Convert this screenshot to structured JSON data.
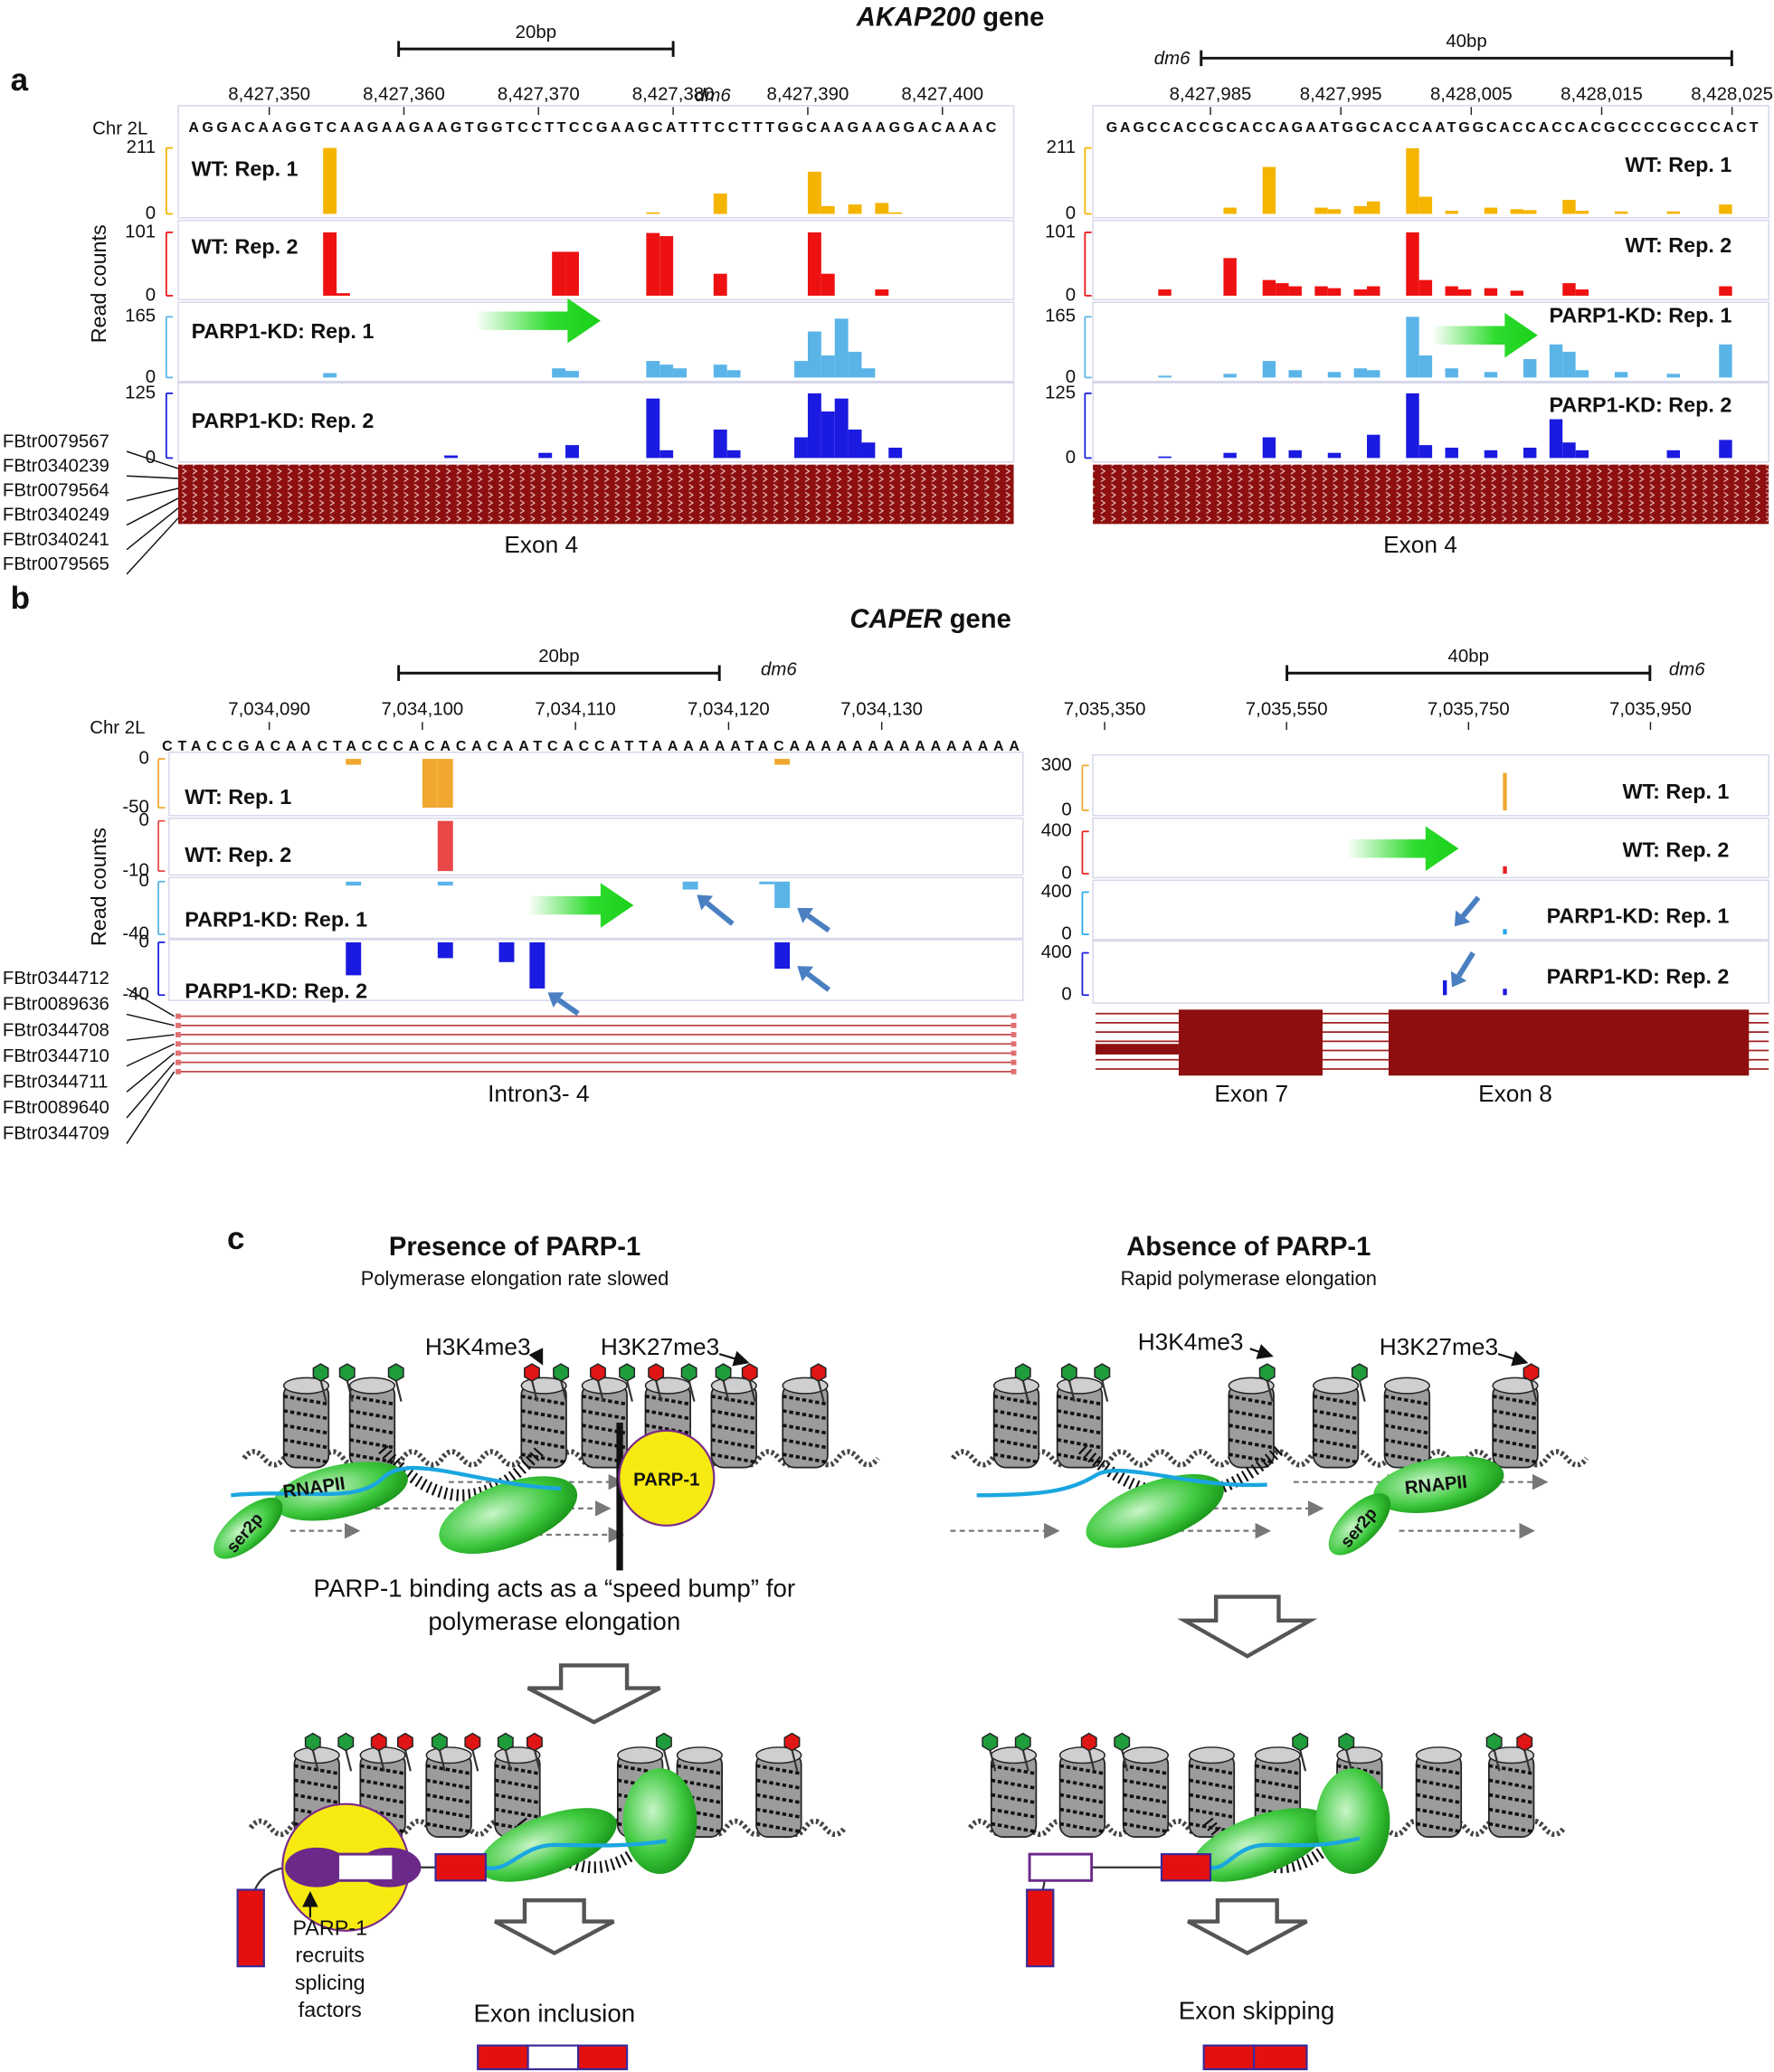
{
  "panel_a": {
    "label": "a",
    "gene": "AKAP200",
    "gene_suffix": "gene",
    "y_axis_label": "Read counts",
    "left": {
      "chrom": "Chr 2L",
      "scale_bar": "20bp",
      "assembly": "dm6",
      "xlim": [
        8427344,
        8427404
      ],
      "xticks": [
        {
          "value": 8427350,
          "label": "8,427,350"
        },
        {
          "value": 8427360,
          "label": "8,427,360"
        },
        {
          "value": 8427370,
          "label": "8,427,370"
        },
        {
          "value": 8427380,
          "label": "8,427,380"
        },
        {
          "value": 8427390,
          "label": "8,427,390"
        },
        {
          "value": 8427400,
          "label": "8,427,400"
        }
      ],
      "sequence": "AGGACAAGGTCAAGAAGAAGTGGTCCTTCCGAAGCATTTCCTTTGGCAAGAAGGACAAAC",
      "tracks": [
        {
          "name": "WT: Rep. 1",
          "color": "#f5b400",
          "ylim": [
            0,
            211
          ],
          "yticks": [
            0,
            211
          ],
          "bars": [
            {
              "x": 8427354,
              "value": 211
            },
            {
              "x": 8427378,
              "value": 5
            },
            {
              "x": 8427383,
              "value": 65
            },
            {
              "x": 8427390,
              "value": 135
            },
            {
              "x": 8427391,
              "value": 25
            },
            {
              "x": 8427393,
              "value": 30
            },
            {
              "x": 8427395,
              "value": 35
            },
            {
              "x": 8427396,
              "value": 5
            }
          ]
        },
        {
          "name": "WT: Rep. 2",
          "color": "#ee1111",
          "ylim": [
            0,
            101
          ],
          "yticks": [
            0,
            101
          ],
          "bars": [
            {
              "x": 8427354,
              "value": 101
            },
            {
              "x": 8427355,
              "value": 4
            },
            {
              "x": 8427371,
              "value": 70
            },
            {
              "x": 8427372,
              "value": 70
            },
            {
              "x": 8427378,
              "value": 100
            },
            {
              "x": 8427379,
              "value": 95
            },
            {
              "x": 8427383,
              "value": 35
            },
            {
              "x": 8427390,
              "value": 101
            },
            {
              "x": 8427391,
              "value": 35
            },
            {
              "x": 8427395,
              "value": 10
            }
          ]
        },
        {
          "name": "PARP1-KD: Rep. 1",
          "color": "#5ab4e8",
          "ylim": [
            0,
            165
          ],
          "yticks": [
            0,
            165
          ],
          "bars": [
            {
              "x": 8427354,
              "value": 12
            },
            {
              "x": 8427371,
              "value": 25
            },
            {
              "x": 8427372,
              "value": 18
            },
            {
              "x": 8427378,
              "value": 45
            },
            {
              "x": 8427379,
              "value": 35
            },
            {
              "x": 8427380,
              "value": 25
            },
            {
              "x": 8427383,
              "value": 35
            },
            {
              "x": 8427384,
              "value": 20
            },
            {
              "x": 8427389,
              "value": 45
            },
            {
              "x": 8427390,
              "value": 125
            },
            {
              "x": 8427391,
              "value": 60
            },
            {
              "x": 8427392,
              "value": 160
            },
            {
              "x": 8427393,
              "value": 70
            },
            {
              "x": 8427394,
              "value": 25
            }
          ]
        },
        {
          "name": "PARP1-KD: Rep. 2",
          "color": "#1a1ae0",
          "ylim": [
            0,
            125
          ],
          "yticks": [
            0,
            125
          ],
          "bars": [
            {
              "x": 8427363,
              "value": 5
            },
            {
              "x": 8427370,
              "value": 10
            },
            {
              "x": 8427372,
              "value": 25
            },
            {
              "x": 8427378,
              "value": 115
            },
            {
              "x": 8427379,
              "value": 15
            },
            {
              "x": 8427383,
              "value": 55
            },
            {
              "x": 8427384,
              "value": 15
            },
            {
              "x": 8427389,
              "value": 40
            },
            {
              "x": 8427390,
              "value": 125
            },
            {
              "x": 8427391,
              "value": 90
            },
            {
              "x": 8427392,
              "value": 115
            },
            {
              "x": 8427393,
              "value": 55
            },
            {
              "x": 8427394,
              "value": 30
            },
            {
              "x": 8427396,
              "value": 20
            }
          ]
        }
      ],
      "transcripts": [
        "FBtr0079567",
        "FBtr0340239",
        "FBtr0079564",
        "FBtr0340249",
        "FBtr0340241",
        "FBtr0079565"
      ],
      "feature": "Exon 4"
    },
    "right": {
      "scale_bar": "40bp",
      "assembly": "dm6",
      "xlim": [
        8427977,
        8428027
      ],
      "xticks": [
        {
          "value": 8427985,
          "label": "8,427,985"
        },
        {
          "value": 8427995,
          "label": "8,427,995"
        },
        {
          "value": 8428005,
          "label": "8,428,005"
        },
        {
          "value": 8428015,
          "label": "8,428,015"
        },
        {
          "value": 8428025,
          "label": "8,428,025"
        }
      ],
      "sequence": "GAGCCACCGCACCAGAATGGCACCAATGGCACCACCACGCCCCGCCCACT",
      "tracks": [
        {
          "name": "WT: Rep. 1",
          "color": "#f5b400",
          "ylim": [
            0,
            211
          ],
          "yticks": [
            0,
            211
          ],
          "bars": [
            {
              "x": 8427986,
              "value": 20
            },
            {
              "x": 8427989,
              "value": 150
            },
            {
              "x": 8427993,
              "value": 20
            },
            {
              "x": 8427994,
              "value": 15
            },
            {
              "x": 8427996,
              "value": 25
            },
            {
              "x": 8427997,
              "value": 40
            },
            {
              "x": 8428000,
              "value": 210
            },
            {
              "x": 8428001,
              "value": 55
            },
            {
              "x": 8428003,
              "value": 10
            },
            {
              "x": 8428006,
              "value": 20
            },
            {
              "x": 8428008,
              "value": 15
            },
            {
              "x": 8428009,
              "value": 12
            },
            {
              "x": 8428012,
              "value": 45
            },
            {
              "x": 8428013,
              "value": 10
            },
            {
              "x": 8428016,
              "value": 8
            },
            {
              "x": 8428020,
              "value": 8
            },
            {
              "x": 8428024,
              "value": 30
            }
          ]
        },
        {
          "name": "WT: Rep. 2",
          "color": "#ee1111",
          "ylim": [
            0,
            101
          ],
          "yticks": [
            0,
            101
          ],
          "bars": [
            {
              "x": 8427981,
              "value": 10
            },
            {
              "x": 8427986,
              "value": 60
            },
            {
              "x": 8427989,
              "value": 25
            },
            {
              "x": 8427990,
              "value": 20
            },
            {
              "x": 8427991,
              "value": 15
            },
            {
              "x": 8427993,
              "value": 15
            },
            {
              "x": 8427994,
              "value": 12
            },
            {
              "x": 8427996,
              "value": 10
            },
            {
              "x": 8427997,
              "value": 15
            },
            {
              "x": 8428000,
              "value": 101
            },
            {
              "x": 8428001,
              "value": 25
            },
            {
              "x": 8428003,
              "value": 15
            },
            {
              "x": 8428004,
              "value": 10
            },
            {
              "x": 8428006,
              "value": 12
            },
            {
              "x": 8428008,
              "value": 8
            },
            {
              "x": 8428012,
              "value": 20
            },
            {
              "x": 8428013,
              "value": 10
            },
            {
              "x": 8428024,
              "value": 15
            }
          ]
        },
        {
          "name": "PARP1-KD: Rep. 1",
          "color": "#5ab4e8",
          "ylim": [
            0,
            165
          ],
          "yticks": [
            0,
            165
          ],
          "bars": [
            {
              "x": 8427981,
              "value": 5
            },
            {
              "x": 8427986,
              "value": 10
            },
            {
              "x": 8427989,
              "value": 45
            },
            {
              "x": 8427991,
              "value": 20
            },
            {
              "x": 8427994,
              "value": 15
            },
            {
              "x": 8427996,
              "value": 25
            },
            {
              "x": 8427997,
              "value": 20
            },
            {
              "x": 8428000,
              "value": 165
            },
            {
              "x": 8428001,
              "value": 60
            },
            {
              "x": 8428003,
              "value": 25
            },
            {
              "x": 8428006,
              "value": 15
            },
            {
              "x": 8428009,
              "value": 50
            },
            {
              "x": 8428011,
              "value": 90
            },
            {
              "x": 8428012,
              "value": 70
            },
            {
              "x": 8428013,
              "value": 20
            },
            {
              "x": 8428016,
              "value": 15
            },
            {
              "x": 8428020,
              "value": 10
            },
            {
              "x": 8428024,
              "value": 90
            }
          ]
        },
        {
          "name": "PARP1-KD: Rep. 2",
          "color": "#1a1ae0",
          "ylim": [
            0,
            125
          ],
          "yticks": [
            0,
            125
          ],
          "bars": [
            {
              "x": 8427981,
              "value": 3
            },
            {
              "x": 8427986,
              "value": 10
            },
            {
              "x": 8427989,
              "value": 40
            },
            {
              "x": 8427991,
              "value": 15
            },
            {
              "x": 8427994,
              "value": 10
            },
            {
              "x": 8427997,
              "value": 45
            },
            {
              "x": 8428000,
              "value": 125
            },
            {
              "x": 8428001,
              "value": 25
            },
            {
              "x": 8428003,
              "value": 20
            },
            {
              "x": 8428006,
              "value": 15
            },
            {
              "x": 8428009,
              "value": 20
            },
            {
              "x": 8428011,
              "value": 75
            },
            {
              "x": 8428012,
              "value": 30
            },
            {
              "x": 8428013,
              "value": 15
            },
            {
              "x": 8428020,
              "value": 15
            },
            {
              "x": 8428024,
              "value": 35
            }
          ]
        }
      ],
      "feature": "Exon 4"
    }
  },
  "panel_b": {
    "label": "b",
    "gene": "CAPER",
    "gene_suffix": "gene",
    "y_axis_label": "Read counts",
    "left": {
      "chrom": "Chr 2L",
      "scale_bar": "20bp",
      "assembly": "dm6",
      "xlim": [
        7034083,
        7034139
      ],
      "xticks": [
        {
          "value": 7034090,
          "label": "7,034,090"
        },
        {
          "value": 7034100,
          "label": "7,034,100"
        },
        {
          "value": 7034110,
          "label": "7,034,110"
        },
        {
          "value": 7034120,
          "label": "7,034,120"
        },
        {
          "value": 7034130,
          "label": "7,034,130"
        }
      ],
      "sequence": "CTACCGACAACTACCCACACACAATCACCATTAAAAAATACAAAAAAAAAAAAAAA",
      "tracks": [
        {
          "name": "WT: Rep. 1",
          "color": "#f0a830",
          "ylim": [
            -50,
            0
          ],
          "yticks": [
            0,
            -50
          ],
          "bars": [
            {
              "x": 7034095,
              "value": -6
            },
            {
              "x": 7034100,
              "value": -50
            },
            {
              "x": 7034101,
              "value": -50
            },
            {
              "x": 7034123,
              "value": -6
            }
          ]
        },
        {
          "name": "WT: Rep. 2",
          "color": "#e84848",
          "ylim": [
            -10,
            0
          ],
          "yticks": [
            0,
            -10
          ],
          "bars": [
            {
              "x": 7034101,
              "value": -10
            }
          ]
        },
        {
          "name": "PARP1-KD: Rep. 1",
          "color": "#5ab4e8",
          "ylim": [
            -40,
            0
          ],
          "yticks": [
            0,
            -40
          ],
          "bars": [
            {
              "x": 7034095,
              "value": -3
            },
            {
              "x": 7034101,
              "value": -3
            },
            {
              "x": 7034117,
              "value": -6
            },
            {
              "x": 7034122,
              "value": -2
            },
            {
              "x": 7034123,
              "value": -20
            }
          ]
        },
        {
          "name": "PARP1-KD: Rep. 2",
          "color": "#1a1ae0",
          "ylim": [
            -40,
            0
          ],
          "yticks": [
            0,
            -40
          ],
          "bars": [
            {
              "x": 7034095,
              "value": -25
            },
            {
              "x": 7034101,
              "value": -12
            },
            {
              "x": 7034105,
              "value": -15
            },
            {
              "x": 7034107,
              "value": -35
            },
            {
              "x": 7034123,
              "value": -20
            }
          ]
        }
      ],
      "transcripts": [
        "FBtr0344712",
        "FBtr0089636",
        "FBtr0344708",
        "FBtr0344710",
        "FBtr0344711",
        "FBtr0089640",
        "FBtr0344709"
      ],
      "feature": "Intron3- 4"
    },
    "right": {
      "scale_bar": "40bp",
      "assembly": "dm6",
      "xlim": [
        7035340,
        7036080
      ],
      "xticks": [
        {
          "value": 7035350,
          "label": "7,035,350"
        },
        {
          "value": 7035550,
          "label": "7,035,550"
        },
        {
          "value": 7035750,
          "label": "7,035,750"
        },
        {
          "value": 7035950,
          "label": "7,035,950"
        }
      ],
      "tracks": [
        {
          "name": "WT: Rep. 1",
          "color": "#f0a830",
          "ylim": [
            0,
            300
          ],
          "yticks": [
            0,
            300
          ],
          "bars": [
            {
              "x": 7035790,
              "value": 250
            }
          ]
        },
        {
          "name": "WT: Rep. 2",
          "color": "#e82020",
          "ylim": [
            0,
            400
          ],
          "yticks": [
            0,
            400
          ],
          "bars": [
            {
              "x": 7035790,
              "value": 70
            }
          ]
        },
        {
          "name": "PARP1-KD: Rep. 1",
          "color": "#2aa8ee",
          "ylim": [
            0,
            400
          ],
          "yticks": [
            0,
            400
          ],
          "bars": [
            {
              "x": 7035790,
              "value": 50
            }
          ]
        },
        {
          "name": "PARP1-KD: Rep. 2",
          "color": "#1a1ae0",
          "ylim": [
            0,
            400
          ],
          "yticks": [
            0,
            400
          ],
          "bars": [
            {
              "x": 7035724,
              "value": 140
            },
            {
              "x": 7035790,
              "value": 60
            }
          ]
        }
      ],
      "features": [
        "Exon 7",
        "Exon 8"
      ]
    }
  },
  "panel_c": {
    "label": "c",
    "left": {
      "title": "Presence of PARP-1",
      "subtitle": "Polymerase elongation rate slowed",
      "marks": [
        "H3K4me3",
        "H3K27me3"
      ],
      "polymerase": "RNAPII",
      "phospho": "ser2p",
      "factor": "PARP-1",
      "caption": [
        "PARP-1 binding acts as a “speed bump” for",
        "polymerase elongation"
      ],
      "recruit_note": [
        "PARP-1",
        "recruits",
        "splicing",
        "factors"
      ],
      "outcome": "Exon inclusion"
    },
    "right": {
      "title": "Absence of PARP-1",
      "subtitle": "Rapid polymerase elongation",
      "marks": [
        "H3K4me3",
        "H3K27me3"
      ],
      "polymerase": "RNAPII",
      "phospho": "ser2p",
      "outcome": "Exon skipping"
    }
  }
}
